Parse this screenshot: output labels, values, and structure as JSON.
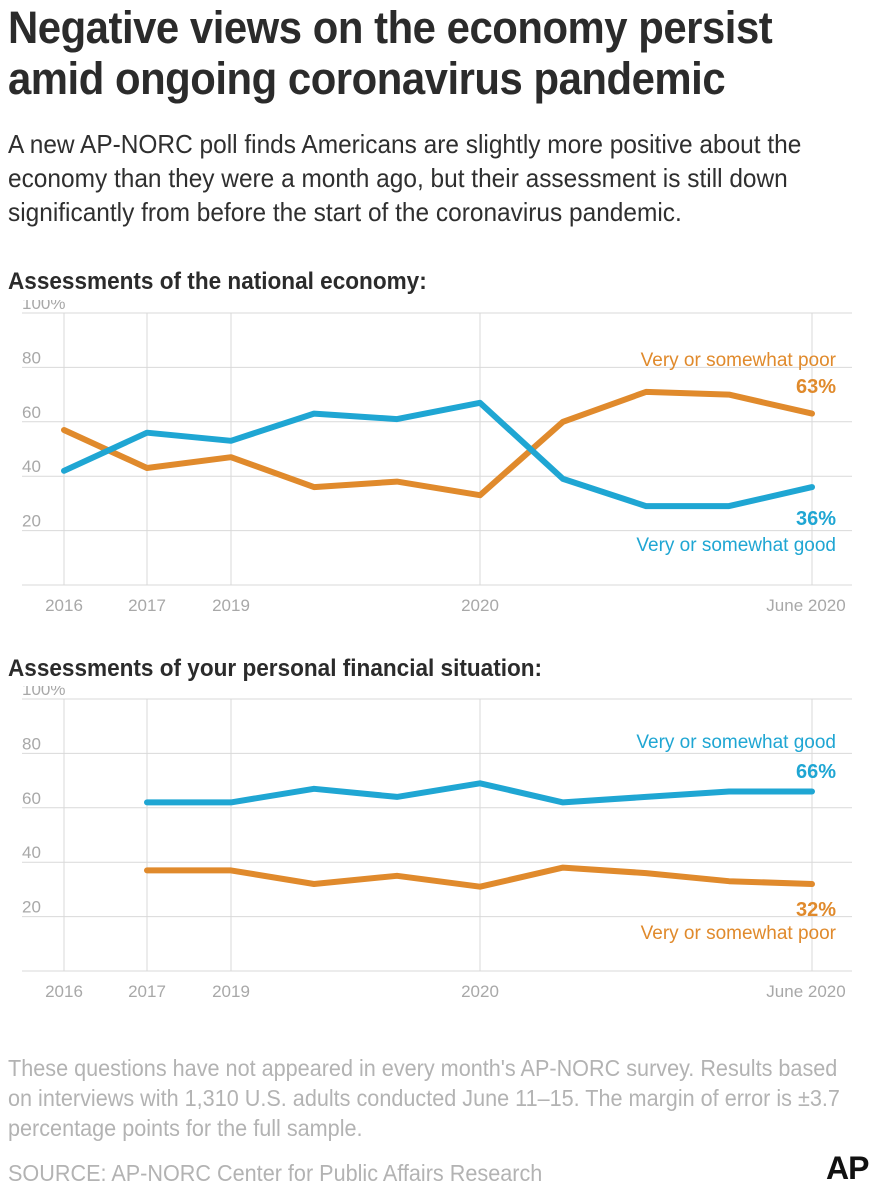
{
  "title": "Negative views on the economy persist amid ongoing coronavirus pandemic",
  "subtitle": "A new AP-NORC poll finds Americans are slightly more positive about the economy than they were a month ago, but their assessment is still down significantly from before the start of the coronavirus pandemic.",
  "chart_data": [
    {
      "type": "line",
      "title": "Assessments of the national economy:",
      "x_tick_labels": [
        "2016",
        "2017",
        "2019",
        "2020",
        "June 2020"
      ],
      "ylim": [
        0,
        100
      ],
      "y_ticks": [
        "20",
        "40",
        "60",
        "80",
        "100%"
      ],
      "grid": true,
      "series": [
        {
          "name": "Very or somewhat poor",
          "color": "#e08a2c",
          "values": [
            57,
            43,
            47,
            36,
            38,
            33,
            60,
            71,
            70,
            63
          ],
          "end_label": "63%"
        },
        {
          "name": "Very or somewhat good",
          "color": "#1fa6d3",
          "values": [
            42,
            56,
            53,
            63,
            61,
            67,
            39,
            29,
            29,
            36
          ],
          "end_label": "36%"
        }
      ]
    },
    {
      "type": "line",
      "title": "Assessments of your personal financial situation:",
      "x_tick_labels": [
        "2016",
        "2017",
        "2019",
        "2020",
        "June 2020"
      ],
      "ylim": [
        0,
        100
      ],
      "y_ticks": [
        "20",
        "40",
        "60",
        "80",
        "100%"
      ],
      "grid": true,
      "series": [
        {
          "name": "Very or somewhat good",
          "color": "#1fa6d3",
          "values": [
            null,
            62,
            62,
            67,
            64,
            69,
            62,
            64,
            66,
            66
          ],
          "end_label": "66%"
        },
        {
          "name": "Very or somewhat poor",
          "color": "#e08a2c",
          "values": [
            null,
            37,
            37,
            32,
            35,
            31,
            38,
            36,
            33,
            32
          ],
          "end_label": "32%"
        }
      ]
    }
  ],
  "footnote": "These questions have not appeared in every month's AP-NORC survey. Results based on interviews with 1,310 U.S. adults conducted June 11–15. The margin of error is ±3.7 percentage points for the full sample.",
  "source": "SOURCE: AP-NORC Center for Public Affairs Research",
  "logo": "AP"
}
